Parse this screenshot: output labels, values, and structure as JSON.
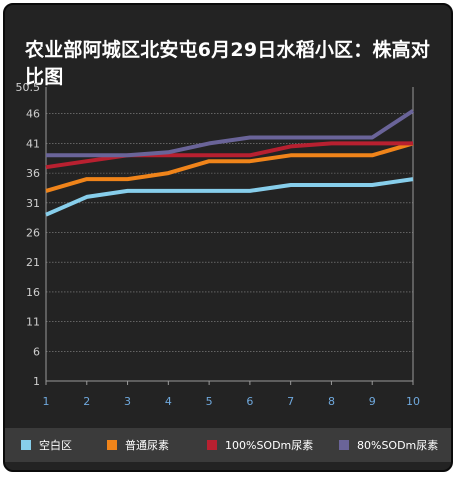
{
  "chart_data": {
    "type": "line",
    "title": "农业部阿城区北安屯6月29日水稻小区：株高对比图",
    "x": [
      1,
      2,
      3,
      4,
      5,
      6,
      7,
      8,
      9,
      10
    ],
    "y_ticks": [
      "50.5",
      "46",
      "41",
      "36",
      "31",
      "26",
      "21",
      "16",
      "11",
      "6",
      "1"
    ],
    "ylim": [
      1,
      50.5
    ],
    "grid": true,
    "legend_position": "bottom",
    "series": [
      {
        "name": "空白区",
        "color": "#87ceeb",
        "values": [
          29,
          32,
          33,
          33,
          33,
          33,
          34,
          34,
          34,
          35
        ]
      },
      {
        "name": "普通尿素",
        "color": "#f0841a",
        "values": [
          33,
          35,
          35,
          36,
          38,
          38,
          39,
          39,
          39,
          41
        ]
      },
      {
        "name": "100%SODm尿素",
        "color": "#b82030",
        "values": [
          37,
          38,
          39,
          39,
          39,
          39,
          40.5,
          41,
          41,
          41
        ]
      },
      {
        "name": "80%SODm尿素",
        "color": "#6a6499",
        "values": [
          39,
          39,
          39,
          39.5,
          41,
          42,
          42,
          42,
          42,
          46.5
        ]
      }
    ]
  }
}
